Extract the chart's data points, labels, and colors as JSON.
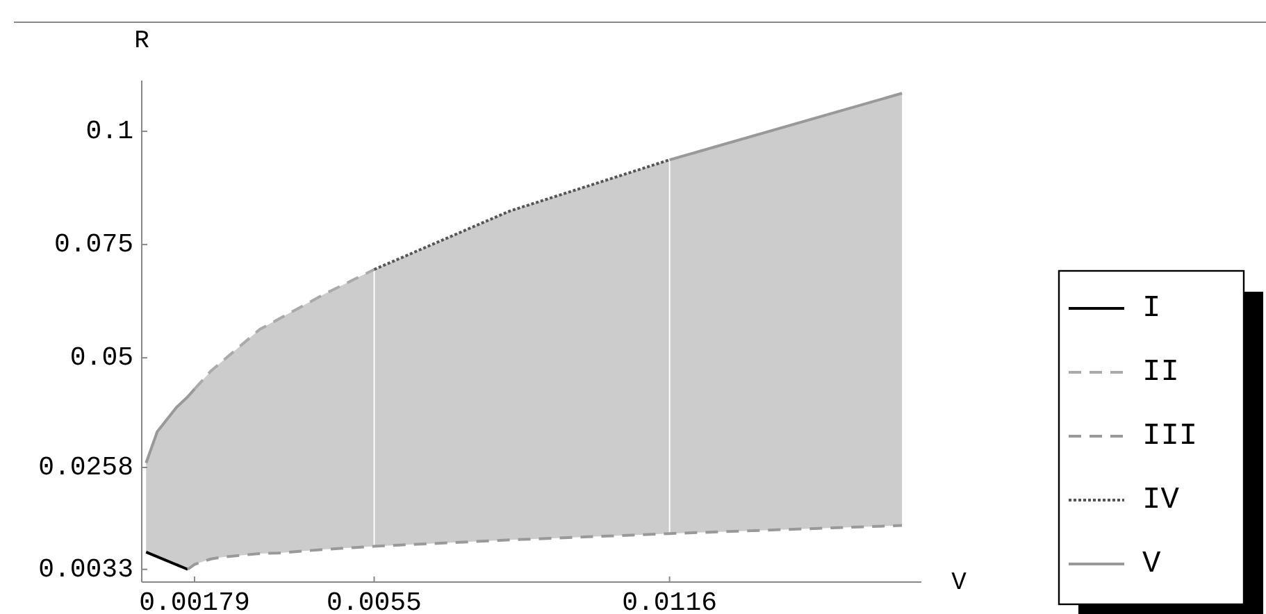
{
  "chart_data": {
    "type": "line",
    "xlabel": "V",
    "ylabel": "R",
    "xlim": [
      0.0007,
      0.0168
    ],
    "ylim": [
      0.0005,
      0.1112
    ],
    "xticks": [
      0.00179,
      0.0055,
      0.0116
    ],
    "yticks": [
      0.0033,
      0.0258,
      0.05,
      0.075,
      0.1
    ],
    "grid": false,
    "legend": "right",
    "marker": "none",
    "ref_lines": [
      {
        "axis": "x",
        "value": 0.0055,
        "color": "#ffffff"
      },
      {
        "axis": "x",
        "value": 0.0116,
        "color": "#ffffff"
      }
    ],
    "series": [
      {
        "name": "I",
        "color": "#000000",
        "line_style": "solid",
        "x": [
          0.00079,
          0.00165
        ],
        "values": [
          0.0071,
          0.0033
        ]
      },
      {
        "name": "II",
        "color": "#aaaaaa",
        "line_style": "dashed",
        "x": [
          0.00179,
          0.00213,
          0.00314,
          0.00446,
          0.0055
        ],
        "values": [
          0.0431,
          0.0471,
          0.0563,
          0.064,
          0.0695
        ]
      },
      {
        "name": "III",
        "color": "#999999",
        "line_style": "dashed",
        "x": [
          0.00165,
          0.00179,
          0.00213,
          0.00236,
          0.00314,
          0.00351,
          0.00446,
          0.0055,
          0.0083,
          0.0116,
          0.0164
        ],
        "values": [
          0.0033,
          0.0044,
          0.0056,
          0.006,
          0.0068,
          0.0069,
          0.0077,
          0.0084,
          0.0098,
          0.0112,
          0.013
        ],
        "lower": [
          null,
          0.0044,
          0.0056,
          0.006,
          0.0068,
          0.0069,
          0.0077,
          0.0084,
          0.0098,
          0.0112,
          0.013
        ],
        "upper": [
          null,
          0.0431,
          0.0471,
          0.0492,
          0.0563,
          0.0585,
          0.064,
          0.0695,
          0.0824,
          0.0937,
          0.1084
        ]
      },
      {
        "name": "IV",
        "color": "#555555",
        "line_style": "dotted",
        "x": [
          0.0055,
          0.0083,
          0.0116
        ],
        "values": [
          0.0695,
          0.0824,
          0.0937
        ]
      },
      {
        "name": "V",
        "color": "#999999",
        "line_style": "solid",
        "x": [
          0.00079,
          0.00102,
          0.00142,
          0.00165,
          0.00179
        ],
        "values": [
          0.0268,
          0.0337,
          0.0391,
          0.0414,
          0.0431
        ],
        "lower": [
          0.0071,
          0.0061,
          0.0043,
          0.0033,
          0.0044
        ],
        "upper": [
          0.0268,
          0.0337,
          0.0391,
          0.0414,
          0.0431
        ]
      },
      {
        "color": "#999999",
        "line_style": "solid",
        "x": [
          0.0116,
          0.0164
        ],
        "values": [
          0.0937,
          0.1084
        ]
      }
    ]
  }
}
